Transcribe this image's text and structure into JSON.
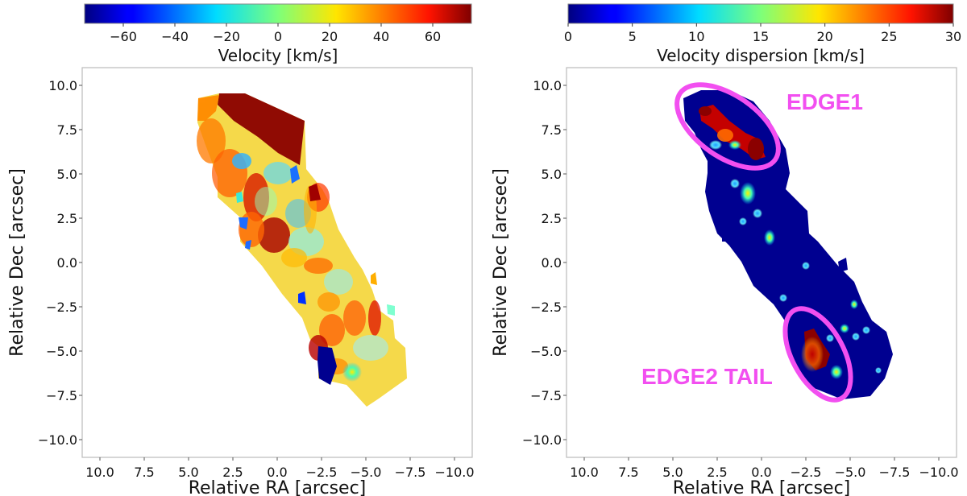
{
  "chart_data": [
    {
      "type": "heatmap",
      "title": "",
      "xlabel": "Relative RA [arcsec]",
      "ylabel": "Relative Dec [arcsec]",
      "xlim": [
        11.0,
        -11.0
      ],
      "ylim": [
        -11.0,
        11.0
      ],
      "x_ticks": [
        "10.0",
        "7.5",
        "5.0",
        "2.5",
        "0.0",
        "−2.5",
        "−5.0",
        "−7.5",
        "−10.0"
      ],
      "y_ticks": [
        "10.0",
        "7.5",
        "5.0",
        "2.5",
        "0.0",
        "−2.5",
        "−5.0",
        "−7.5",
        "−10.0"
      ],
      "colorbar": {
        "label": "Velocity [km/s]",
        "colormap": "jet",
        "range": [
          -75,
          75
        ],
        "ticks": [
          "−60",
          "−40",
          "−20",
          "0",
          "20",
          "40",
          "60"
        ]
      },
      "grid": false
    },
    {
      "type": "heatmap",
      "title": "",
      "xlabel": "Relative RA [arcsec]",
      "ylabel": "Relative Dec [arcsec]",
      "xlim": [
        11.0,
        -11.0
      ],
      "ylim": [
        -11.0,
        11.0
      ],
      "x_ticks": [
        "10.0",
        "7.5",
        "5.0",
        "2.5",
        "0.0",
        "−2.5",
        "−5.0",
        "−7.5",
        "−10.0"
      ],
      "y_ticks": [
        "10.0",
        "7.5",
        "5.0",
        "2.5",
        "0.0",
        "−2.5",
        "−5.0",
        "−7.5",
        "−10.0"
      ],
      "colorbar": {
        "label": "Velocity dispersion [km/s]",
        "colormap": "jet",
        "range": [
          0,
          30
        ],
        "ticks": [
          "0",
          "5",
          "10",
          "15",
          "20",
          "25",
          "30"
        ]
      },
      "annotations": [
        {
          "text": "EDGE1",
          "color": "#f24ff0"
        },
        {
          "text": "EDGE2 TAIL",
          "color": "#f24ff0"
        }
      ],
      "grid": false
    }
  ]
}
